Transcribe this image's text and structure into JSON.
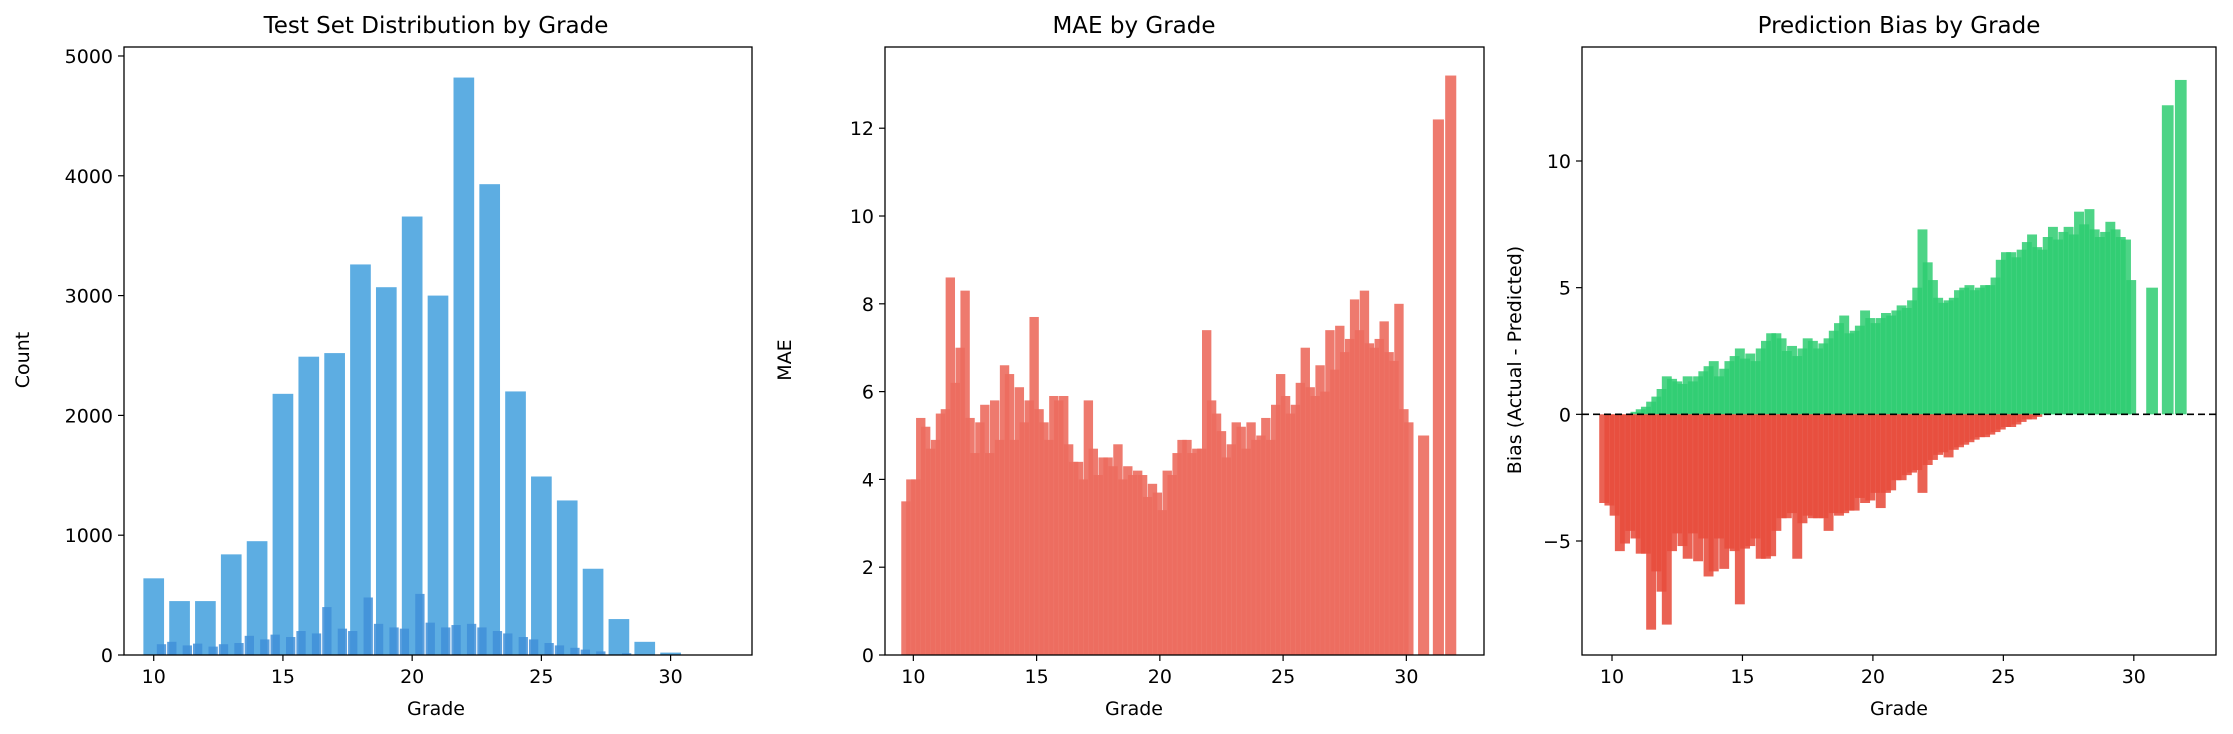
{
  "chart_data": [
    {
      "type": "bar",
      "title": "Test Set Distribution by Grade",
      "xlabel": "Grade",
      "ylabel": "Count",
      "xlim": [
        8.85,
        33.15
      ],
      "ylim": [
        0,
        5075
      ],
      "xticks": [
        10,
        15,
        20,
        25,
        30
      ],
      "yticks": [
        0,
        1000,
        2000,
        3000,
        4000,
        5000
      ],
      "bar_color": "#5dade2",
      "bar_color_fine": "#3f8fd8",
      "bars": [
        {
          "x": 10,
          "y": 640
        },
        {
          "x": 11,
          "y": 450
        },
        {
          "x": 12,
          "y": 450
        },
        {
          "x": 13,
          "y": 840
        },
        {
          "x": 14,
          "y": 950
        },
        {
          "x": 15,
          "y": 2180
        },
        {
          "x": 16,
          "y": 2490
        },
        {
          "x": 17,
          "y": 2520
        },
        {
          "x": 18,
          "y": 3260
        },
        {
          "x": 19,
          "y": 3070
        },
        {
          "x": 20,
          "y": 3660
        },
        {
          "x": 21,
          "y": 3000
        },
        {
          "x": 22,
          "y": 4820
        },
        {
          "x": 23,
          "y": 3930
        },
        {
          "x": 24,
          "y": 2200
        },
        {
          "x": 25,
          "y": 1490
        },
        {
          "x": 26,
          "y": 1290
        },
        {
          "x": 27,
          "y": 720
        },
        {
          "x": 28,
          "y": 300
        },
        {
          "x": 29,
          "y": 110
        },
        {
          "x": 30,
          "y": 20
        }
      ],
      "fine_bars": [
        {
          "x": 10.3,
          "y": 90
        },
        {
          "x": 10.7,
          "y": 110
        },
        {
          "x": 11.3,
          "y": 80
        },
        {
          "x": 11.7,
          "y": 95
        },
        {
          "x": 12.3,
          "y": 70
        },
        {
          "x": 12.7,
          "y": 90
        },
        {
          "x": 13.3,
          "y": 100
        },
        {
          "x": 13.7,
          "y": 160
        },
        {
          "x": 14.3,
          "y": 130
        },
        {
          "x": 14.7,
          "y": 170
        },
        {
          "x": 15.3,
          "y": 150
        },
        {
          "x": 15.7,
          "y": 200
        },
        {
          "x": 16.3,
          "y": 180
        },
        {
          "x": 16.7,
          "y": 400
        },
        {
          "x": 17.3,
          "y": 220
        },
        {
          "x": 17.7,
          "y": 200
        },
        {
          "x": 18.3,
          "y": 480
        },
        {
          "x": 18.7,
          "y": 260
        },
        {
          "x": 19.3,
          "y": 230
        },
        {
          "x": 19.7,
          "y": 220
        },
        {
          "x": 20.3,
          "y": 510
        },
        {
          "x": 20.7,
          "y": 270
        },
        {
          "x": 21.3,
          "y": 230
        },
        {
          "x": 21.7,
          "y": 250
        },
        {
          "x": 22.3,
          "y": 260
        },
        {
          "x": 22.7,
          "y": 230
        },
        {
          "x": 23.3,
          "y": 200
        },
        {
          "x": 23.7,
          "y": 180
        },
        {
          "x": 24.3,
          "y": 150
        },
        {
          "x": 24.7,
          "y": 130
        },
        {
          "x": 25.3,
          "y": 100
        },
        {
          "x": 25.7,
          "y": 80
        },
        {
          "x": 26.3,
          "y": 60
        },
        {
          "x": 26.7,
          "y": 45
        },
        {
          "x": 27.3,
          "y": 30
        },
        {
          "x": 28.3,
          "y": 15
        }
      ]
    },
    {
      "type": "bar",
      "title": "MAE by Grade",
      "xlabel": "Grade",
      "ylabel": "MAE",
      "xlim": [
        8.85,
        33.15
      ],
      "ylim": [
        0,
        13.85
      ],
      "xticks": [
        10,
        15,
        20,
        25,
        30
      ],
      "yticks": [
        0,
        2,
        4,
        6,
        8,
        10,
        12
      ],
      "bar_color": "#e74c3c",
      "bar_color_light": "#ec6b5e",
      "points": [
        [
          9.7,
          3.5
        ],
        [
          9.9,
          4.0
        ],
        [
          10.1,
          4.0
        ],
        [
          10.3,
          5.4
        ],
        [
          10.5,
          5.2
        ],
        [
          10.7,
          4.7
        ],
        [
          10.9,
          4.9
        ],
        [
          11.1,
          5.5
        ],
        [
          11.3,
          5.6
        ],
        [
          11.5,
          8.6
        ],
        [
          11.7,
          6.2
        ],
        [
          11.9,
          7.0
        ],
        [
          12.1,
          8.3
        ],
        [
          12.3,
          5.4
        ],
        [
          12.5,
          4.6
        ],
        [
          12.7,
          5.3
        ],
        [
          12.9,
          5.7
        ],
        [
          13.1,
          4.6
        ],
        [
          13.3,
          5.8
        ],
        [
          13.5,
          4.9
        ],
        [
          13.7,
          6.6
        ],
        [
          13.9,
          6.4
        ],
        [
          14.1,
          4.9
        ],
        [
          14.3,
          6.1
        ],
        [
          14.5,
          5.3
        ],
        [
          14.7,
          5.8
        ],
        [
          14.9,
          7.7
        ],
        [
          15.1,
          5.6
        ],
        [
          15.3,
          5.3
        ],
        [
          15.5,
          4.9
        ],
        [
          15.7,
          5.9
        ],
        [
          15.9,
          5.8
        ],
        [
          16.1,
          5.9
        ],
        [
          16.3,
          4.8
        ],
        [
          16.5,
          4.4
        ],
        [
          16.7,
          4.4
        ],
        [
          16.9,
          4.0
        ],
        [
          17.1,
          5.8
        ],
        [
          17.3,
          4.7
        ],
        [
          17.5,
          4.1
        ],
        [
          17.7,
          4.5
        ],
        [
          17.9,
          4.5
        ],
        [
          18.1,
          4.3
        ],
        [
          18.3,
          4.8
        ],
        [
          18.5,
          4.0
        ],
        [
          18.7,
          4.3
        ],
        [
          18.9,
          4.1
        ],
        [
          19.1,
          4.2
        ],
        [
          19.3,
          4.1
        ],
        [
          19.5,
          3.6
        ],
        [
          19.7,
          3.9
        ],
        [
          19.9,
          3.7
        ],
        [
          20.1,
          3.3
        ],
        [
          20.3,
          4.2
        ],
        [
          20.5,
          4.1
        ],
        [
          20.7,
          4.6
        ],
        [
          20.9,
          4.9
        ],
        [
          21.1,
          4.9
        ],
        [
          21.3,
          4.6
        ],
        [
          21.5,
          4.7
        ],
        [
          21.7,
          4.7
        ],
        [
          21.9,
          7.4
        ],
        [
          22.1,
          5.8
        ],
        [
          22.3,
          5.5
        ],
        [
          22.5,
          5.1
        ],
        [
          22.7,
          4.5
        ],
        [
          22.9,
          4.8
        ],
        [
          23.1,
          5.3
        ],
        [
          23.3,
          5.2
        ],
        [
          23.5,
          4.7
        ],
        [
          23.7,
          5.3
        ],
        [
          23.9,
          4.9
        ],
        [
          24.1,
          5.0
        ],
        [
          24.3,
          5.4
        ],
        [
          24.5,
          4.9
        ],
        [
          24.7,
          5.7
        ],
        [
          24.9,
          6.4
        ],
        [
          25.1,
          5.9
        ],
        [
          25.3,
          5.5
        ],
        [
          25.5,
          5.7
        ],
        [
          25.7,
          6.2
        ],
        [
          25.9,
          7.0
        ],
        [
          26.1,
          6.1
        ],
        [
          26.3,
          5.9
        ],
        [
          26.5,
          6.6
        ],
        [
          26.7,
          6.0
        ],
        [
          26.9,
          7.4
        ],
        [
          27.1,
          6.5
        ],
        [
          27.3,
          7.5
        ],
        [
          27.5,
          6.9
        ],
        [
          27.7,
          7.2
        ],
        [
          27.9,
          8.1
        ],
        [
          28.1,
          7.4
        ],
        [
          28.3,
          8.3
        ],
        [
          28.5,
          7.1
        ],
        [
          28.7,
          7.0
        ],
        [
          28.9,
          7.2
        ],
        [
          29.1,
          7.6
        ],
        [
          29.3,
          6.9
        ],
        [
          29.5,
          6.7
        ],
        [
          29.7,
          8.0
        ],
        [
          29.9,
          5.6
        ],
        [
          30.1,
          5.3
        ],
        [
          30.7,
          5.0
        ],
        [
          31.3,
          12.2
        ],
        [
          31.8,
          13.2
        ]
      ]
    },
    {
      "type": "bar",
      "title": "Prediction Bias by Grade",
      "xlabel": "Grade",
      "ylabel": "Bias (Actual - Predicted)",
      "xlim": [
        8.85,
        33.15
      ],
      "ylim": [
        -9.5,
        14.5
      ],
      "xticks": [
        10,
        15,
        20,
        25,
        30
      ],
      "yticks": [
        -5,
        0,
        5,
        10
      ],
      "positive_color": "#2ecc71",
      "negative_color": "#e74c3c",
      "zero_line": true,
      "positive_points": [
        [
          10.9,
          0.1
        ],
        [
          11.1,
          0.2
        ],
        [
          11.3,
          0.3
        ],
        [
          11.5,
          0.5
        ],
        [
          11.7,
          0.7
        ],
        [
          11.9,
          1.0
        ],
        [
          12.1,
          1.5
        ],
        [
          12.3,
          1.4
        ],
        [
          12.5,
          1.3
        ],
        [
          12.7,
          1.2
        ],
        [
          12.9,
          1.5
        ],
        [
          13.1,
          1.3
        ],
        [
          13.3,
          1.5
        ],
        [
          13.5,
          1.7
        ],
        [
          13.7,
          1.9
        ],
        [
          13.9,
          2.1
        ],
        [
          14.1,
          1.5
        ],
        [
          14.3,
          1.8
        ],
        [
          14.5,
          2.1
        ],
        [
          14.7,
          2.3
        ],
        [
          14.9,
          2.6
        ],
        [
          15.1,
          2.2
        ],
        [
          15.3,
          2.4
        ],
        [
          15.5,
          2.1
        ],
        [
          15.7,
          2.6
        ],
        [
          15.9,
          2.9
        ],
        [
          16.1,
          3.2
        ],
        [
          16.3,
          3.2
        ],
        [
          16.5,
          3.0
        ],
        [
          16.7,
          2.5
        ],
        [
          16.9,
          2.7
        ],
        [
          17.1,
          2.3
        ],
        [
          17.3,
          2.6
        ],
        [
          17.5,
          3.0
        ],
        [
          17.7,
          2.9
        ],
        [
          17.9,
          2.6
        ],
        [
          18.1,
          2.8
        ],
        [
          18.3,
          3.0
        ],
        [
          18.5,
          3.3
        ],
        [
          18.7,
          3.6
        ],
        [
          18.9,
          3.9
        ],
        [
          19.1,
          3.2
        ],
        [
          19.3,
          3.3
        ],
        [
          19.5,
          3.5
        ],
        [
          19.7,
          4.1
        ],
        [
          19.9,
          3.8
        ],
        [
          20.1,
          3.6
        ],
        [
          20.3,
          3.8
        ],
        [
          20.5,
          4.0
        ],
        [
          20.7,
          3.9
        ],
        [
          20.9,
          4.1
        ],
        [
          21.1,
          4.3
        ],
        [
          21.3,
          4.2
        ],
        [
          21.5,
          4.5
        ],
        [
          21.7,
          5.0
        ],
        [
          21.9,
          7.3
        ],
        [
          22.1,
          6.0
        ],
        [
          22.3,
          5.3
        ],
        [
          22.5,
          4.6
        ],
        [
          22.7,
          4.4
        ],
        [
          22.9,
          4.5
        ],
        [
          23.1,
          4.6
        ],
        [
          23.3,
          4.9
        ],
        [
          23.5,
          5.0
        ],
        [
          23.7,
          5.1
        ],
        [
          23.9,
          4.9
        ],
        [
          24.1,
          5.0
        ],
        [
          24.3,
          5.1
        ],
        [
          24.5,
          5.1
        ],
        [
          24.7,
          5.4
        ],
        [
          24.9,
          6.1
        ],
        [
          25.1,
          6.4
        ],
        [
          25.3,
          6.4
        ],
        [
          25.5,
          6.2
        ],
        [
          25.7,
          6.5
        ],
        [
          25.9,
          6.8
        ],
        [
          26.1,
          7.1
        ],
        [
          26.3,
          6.6
        ],
        [
          26.5,
          6.5
        ],
        [
          26.7,
          7.0
        ],
        [
          26.9,
          7.4
        ],
        [
          27.1,
          6.9
        ],
        [
          27.3,
          7.2
        ],
        [
          27.5,
          7.4
        ],
        [
          27.7,
          7.1
        ],
        [
          27.9,
          8.0
        ],
        [
          28.1,
          7.5
        ],
        [
          28.3,
          8.1
        ],
        [
          28.5,
          7.3
        ],
        [
          28.7,
          7.0
        ],
        [
          28.9,
          7.2
        ],
        [
          29.1,
          7.6
        ],
        [
          29.3,
          7.3
        ],
        [
          29.5,
          7.0
        ],
        [
          29.7,
          6.9
        ],
        [
          29.9,
          5.3
        ],
        [
          30.7,
          5.0
        ],
        [
          31.3,
          12.2
        ],
        [
          31.8,
          13.2
        ]
      ],
      "negative_points": [
        [
          9.7,
          -3.5
        ],
        [
          9.9,
          -3.6
        ],
        [
          10.1,
          -4.0
        ],
        [
          10.3,
          -5.4
        ],
        [
          10.5,
          -5.1
        ],
        [
          10.7,
          -4.6
        ],
        [
          10.9,
          -4.9
        ],
        [
          11.1,
          -5.5
        ],
        [
          11.3,
          -5.5
        ],
        [
          11.5,
          -8.5
        ],
        [
          11.7,
          -6.2
        ],
        [
          11.9,
          -7.0
        ],
        [
          12.1,
          -8.3
        ],
        [
          12.3,
          -5.4
        ],
        [
          12.5,
          -4.7
        ],
        [
          12.7,
          -5.2
        ],
        [
          12.9,
          -5.7
        ],
        [
          13.1,
          -4.7
        ],
        [
          13.3,
          -5.8
        ],
        [
          13.5,
          -4.9
        ],
        [
          13.7,
          -6.4
        ],
        [
          13.9,
          -6.2
        ],
        [
          14.1,
          -4.9
        ],
        [
          14.3,
          -6.1
        ],
        [
          14.5,
          -5.3
        ],
        [
          14.7,
          -5.4
        ],
        [
          14.9,
          -7.5
        ],
        [
          15.1,
          -5.3
        ],
        [
          15.3,
          -5.2
        ],
        [
          15.5,
          -4.9
        ],
        [
          15.7,
          -5.7
        ],
        [
          15.9,
          -5.7
        ],
        [
          16.1,
          -5.6
        ],
        [
          16.3,
          -4.6
        ],
        [
          16.5,
          -4.1
        ],
        [
          16.7,
          -4.1
        ],
        [
          16.9,
          -3.9
        ],
        [
          17.1,
          -5.7
        ],
        [
          17.3,
          -4.3
        ],
        [
          17.5,
          -4.0
        ],
        [
          17.7,
          -4.1
        ],
        [
          17.9,
          -4.1
        ],
        [
          18.1,
          -4.1
        ],
        [
          18.3,
          -4.6
        ],
        [
          18.5,
          -3.9
        ],
        [
          18.7,
          -4.0
        ],
        [
          18.9,
          -3.9
        ],
        [
          19.1,
          -3.8
        ],
        [
          19.3,
          -3.8
        ],
        [
          19.5,
          -3.3
        ],
        [
          19.7,
          -3.5
        ],
        [
          19.9,
          -3.4
        ],
        [
          20.1,
          -3.1
        ],
        [
          20.3,
          -3.7
        ],
        [
          20.5,
          -3.1
        ],
        [
          20.7,
          -3.0
        ],
        [
          20.9,
          -2.6
        ],
        [
          21.1,
          -2.6
        ],
        [
          21.3,
          -2.4
        ],
        [
          21.5,
          -2.3
        ],
        [
          21.7,
          -2.2
        ],
        [
          21.9,
          -3.1
        ],
        [
          22.1,
          -2.0
        ],
        [
          22.3,
          -1.8
        ],
        [
          22.5,
          -1.6
        ],
        [
          22.7,
          -1.5
        ],
        [
          22.9,
          -1.7
        ],
        [
          23.1,
          -1.4
        ],
        [
          23.3,
          -1.3
        ],
        [
          23.5,
          -1.2
        ],
        [
          23.7,
          -1.1
        ],
        [
          23.9,
          -1.0
        ],
        [
          24.1,
          -0.9
        ],
        [
          24.3,
          -0.9
        ],
        [
          24.5,
          -0.8
        ],
        [
          24.7,
          -0.7
        ],
        [
          24.9,
          -0.6
        ],
        [
          25.1,
          -0.5
        ],
        [
          25.3,
          -0.5
        ],
        [
          25.5,
          -0.4
        ],
        [
          25.7,
          -0.3
        ],
        [
          25.9,
          -0.2
        ],
        [
          26.1,
          -0.2
        ],
        [
          26.3,
          -0.1
        ]
      ]
    }
  ]
}
